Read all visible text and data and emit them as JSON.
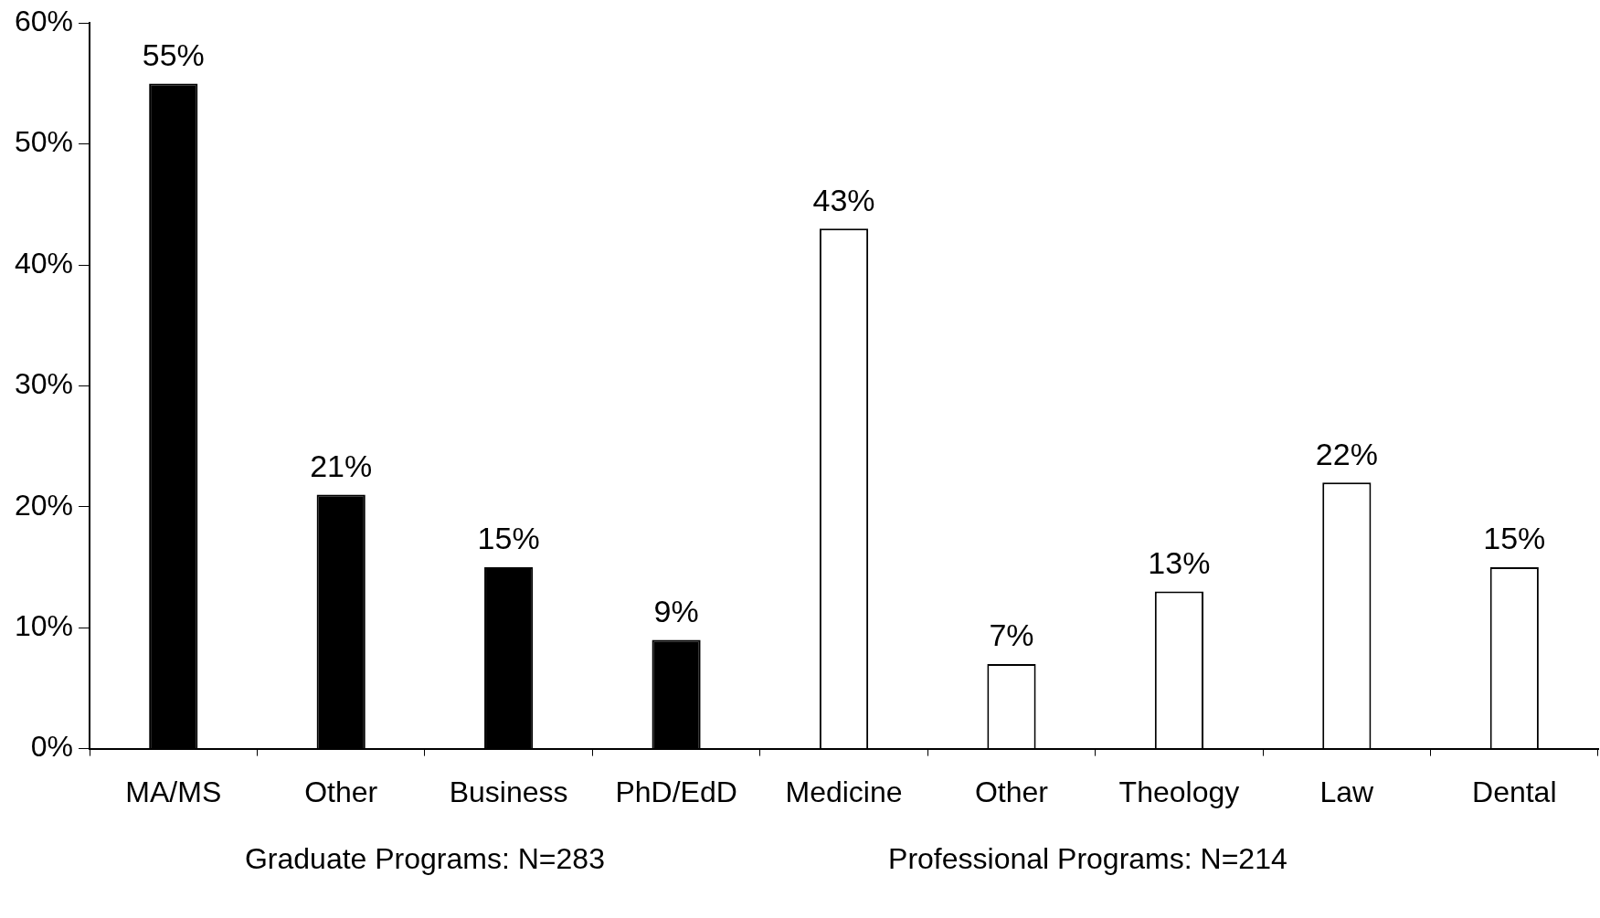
{
  "chart_data": {
    "type": "bar",
    "categories": [
      "MA/MS",
      "Other",
      "Business",
      "PhD/EdD",
      "Medicine",
      "Other",
      "Theology",
      "Law",
      "Dental"
    ],
    "values": [
      55,
      21,
      15,
      9,
      43,
      7,
      13,
      22,
      15
    ],
    "value_labels": [
      "55%",
      "21%",
      "15%",
      "9%",
      "43%",
      "7%",
      "13%",
      "22%",
      "15%"
    ],
    "colors": [
      "#000000",
      "#000000",
      "#000000",
      "#000000",
      "#ffffff",
      "#ffffff",
      "#ffffff",
      "#ffffff",
      "#ffffff"
    ],
    "ylim": [
      0,
      60
    ],
    "yticks": [
      {
        "value": 0,
        "label": "0%"
      },
      {
        "value": 10,
        "label": "10%"
      },
      {
        "value": 20,
        "label": "20%"
      },
      {
        "value": 30,
        "label": "30%"
      },
      {
        "value": 40,
        "label": "40%"
      },
      {
        "value": 50,
        "label": "50%"
      },
      {
        "value": 60,
        "label": "60%"
      }
    ],
    "grid": false,
    "legend": false,
    "annotations": [
      "Graduate Programs: N=283",
      "Professional Programs: N=214"
    ]
  }
}
